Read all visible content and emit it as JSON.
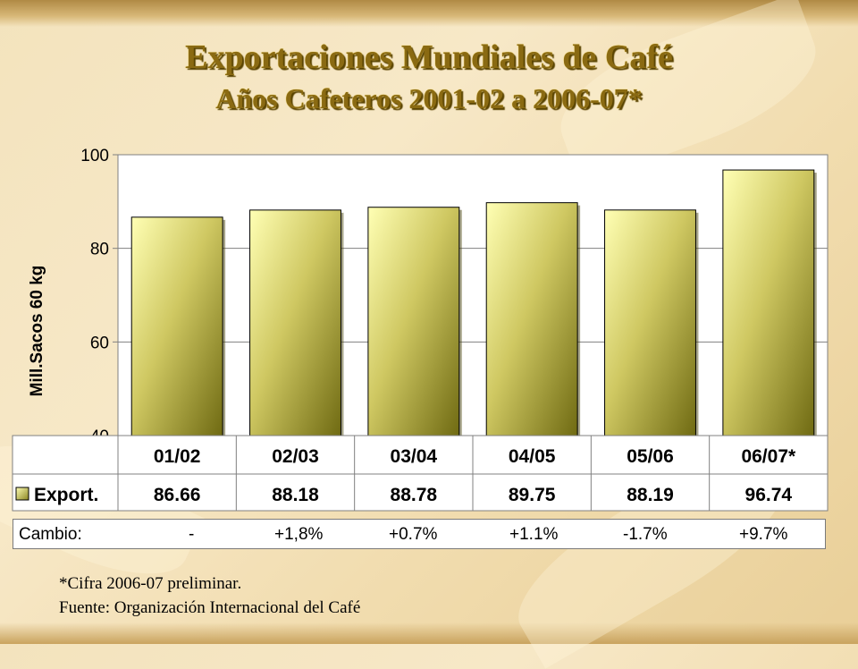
{
  "title": "Exportaciones Mundiales de Café",
  "subtitle": "Años Cafeteros 2001-02 a 2006-07*",
  "chart_data": {
    "type": "bar",
    "ylabel": "Mill.Sacos 60 kg",
    "ylim": [
      40,
      100
    ],
    "yticks": [
      "40",
      "60",
      "80",
      "100"
    ],
    "categories": [
      "01/02",
      "02/03",
      "03/04",
      "04/05",
      "05/06",
      "06/07*"
    ],
    "series": [
      {
        "name": "Export.",
        "values": [
          86.66,
          88.18,
          88.78,
          89.75,
          88.19,
          96.74
        ],
        "labels": [
          "86.66",
          "88.18",
          "88.78",
          "89.75",
          "88.19",
          "96.74"
        ]
      }
    ],
    "grid": true,
    "bar_color": "#b5b041"
  },
  "cambio": {
    "label": "Cambio:",
    "values": [
      "-",
      "+1,8%",
      "+0.7%",
      "+1.1%",
      "-1.7%",
      "+9.7%"
    ]
  },
  "notes": {
    "note1": "*Cifra 2006-07 preliminar.",
    "note2": "Fuente: Organización Internacional del Café"
  }
}
